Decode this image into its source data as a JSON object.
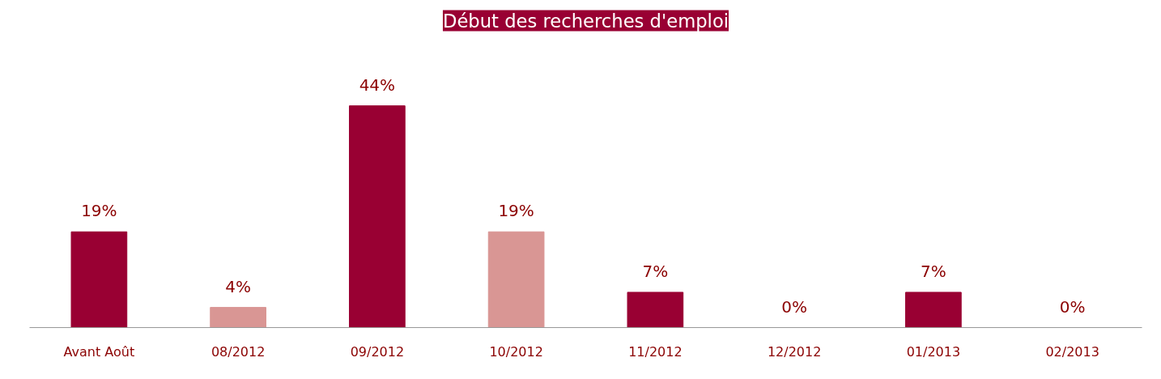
{
  "chart_data": {
    "type": "bar",
    "title": "Début des recherches d'emploi",
    "categories": [
      "Avant Août",
      "08/2012",
      "09/2012",
      "10/2012",
      "11/2012",
      "12/2012",
      "01/2013",
      "02/2013"
    ],
    "values": [
      19,
      4,
      44,
      19,
      7,
      0,
      7,
      0
    ],
    "colors": [
      "#990033",
      "#d99694",
      "#990033",
      "#d99694",
      "#990033",
      "#990033",
      "#990033",
      "#990033"
    ],
    "value_labels": [
      "19%",
      "4%",
      "44%",
      "19%",
      "7%",
      "0%",
      "7%",
      "0%"
    ],
    "grid": false
  }
}
